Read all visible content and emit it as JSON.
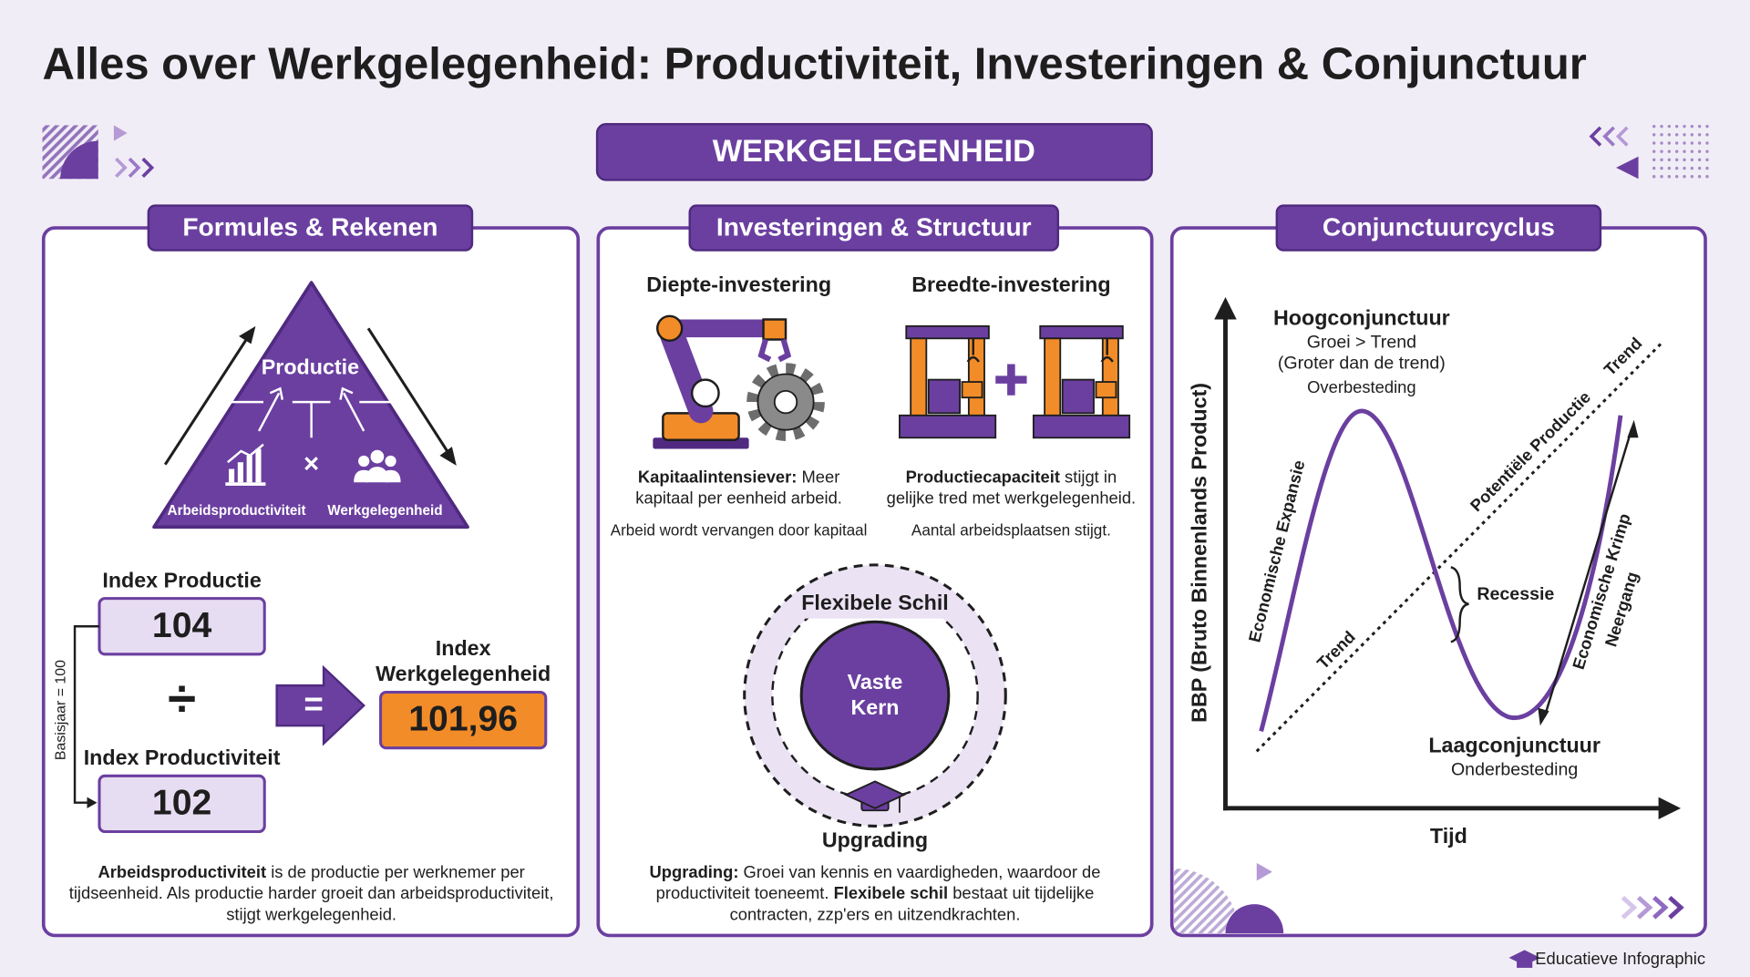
{
  "header": {
    "title": "Alles over Werkgelegenheid: Productiviteit, Investeringen & Conjunctuur",
    "banner": "WERKGELEGENHEID"
  },
  "formulas": {
    "title": "Formules & Rekenen",
    "triangle": {
      "top": "Productie",
      "operator": "×",
      "left": "Arbeidsproductiviteit",
      "right": "Werkgelegenheid"
    },
    "calculation": {
      "base_note": "Basisjaar = 100",
      "production_label": "Index Productie",
      "production_value": 104,
      "divide": "÷",
      "productivity_label": "Index Productiviteit",
      "productivity_value": 102,
      "equals": "=",
      "result_label": [
        "Index",
        "Werkgelegenheid"
      ],
      "result_value": "101,96"
    },
    "note": [
      [
        {
          "text": "Arbeidsproductiviteit",
          "bold": true
        },
        {
          "text": " is de productie per werknemer per",
          "bold": false
        }
      ],
      [
        {
          "text": "tijdseenheid. Als productie harder groeit dan arbeidsproductiviteit,",
          "bold": false
        }
      ],
      [
        {
          "text": "stijgt werkgelegenheid.",
          "bold": false
        }
      ]
    ]
  },
  "investments": {
    "title": "Investeringen & Structuur",
    "depth": {
      "title": "Diepte-investering",
      "caption": [
        [
          {
            "text": "Kapitaalintensiever:",
            "bold": true
          },
          {
            "text": " Meer",
            "bold": false
          }
        ],
        [
          {
            "text": "kapitaal per eenheid arbeid.",
            "bold": false
          }
        ]
      ],
      "sub": "Arbeid wordt vervangen door kapitaal"
    },
    "breadth": {
      "title": "Breedte-investering",
      "caption": [
        [
          {
            "text": "Productiecapaciteit",
            "bold": true
          },
          {
            "text": " stijgt in",
            "bold": false
          }
        ],
        [
          {
            "text": "gelijke tred met werkgelegenheid.",
            "bold": false
          }
        ]
      ],
      "sub": "Aantal arbeidsplaatsen stijgt."
    },
    "circle": {
      "outer": "Flexibele Schil",
      "core": [
        "Vaste",
        "Kern"
      ],
      "bottom": "Upgrading"
    },
    "note": [
      [
        {
          "text": "Upgrading:",
          "bold": true
        },
        {
          "text": " Groei van kennis en vaardigheden, waardoor de",
          "bold": false
        }
      ],
      [
        {
          "text": "productiviteit toeneemt. ",
          "bold": false
        },
        {
          "text": "Flexibele schil",
          "bold": true
        },
        {
          "text": " bestaat uit tijdelijke",
          "bold": false
        }
      ],
      [
        {
          "text": "contracten, zzp'ers en uitzendkrachten.",
          "bold": false
        }
      ]
    ]
  },
  "cycle": {
    "title": "Conjunctuurcyclus",
    "y_axis": "BBP (Bruto Binnenlands Product)",
    "x_axis": "Tijd",
    "peak": {
      "title": "Hoogconjunctuur",
      "lines": [
        "Groei > Trend",
        "(Groter dan de trend)",
        "Overbesteding"
      ]
    },
    "trough": {
      "title": "Laagconjunctuur",
      "sub": "Onderbesteding"
    },
    "expansion": "Economische Expansie",
    "trend_low": "Trend",
    "potential": "Potentiële Productie",
    "trend_high": "Trend",
    "recession": "Recessie",
    "contraction": [
      "Economische Krimp",
      "Neergang"
    ]
  },
  "footer": "Educatieve Infographic"
}
